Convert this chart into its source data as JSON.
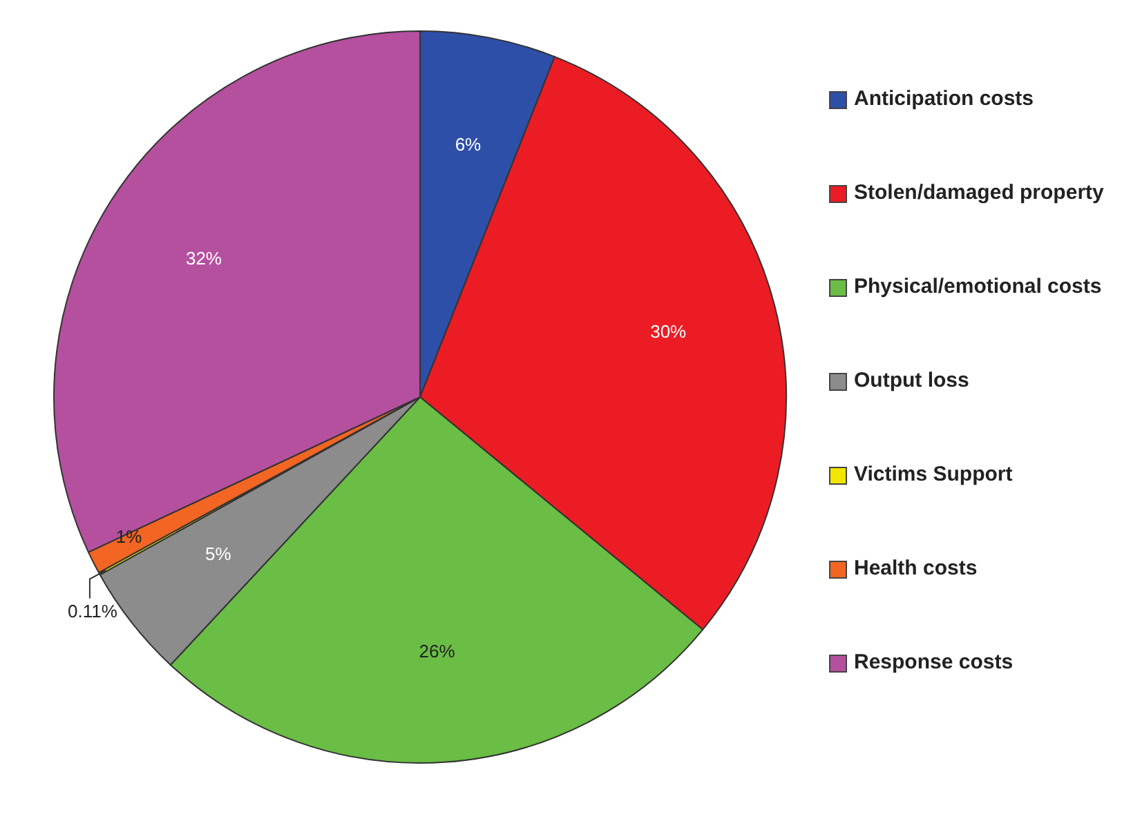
{
  "chart_data": {
    "type": "pie",
    "categories": [
      "Anticipation costs",
      "Stolen/damaged property",
      "Physical/emotional costs",
      "Output loss",
      "Victims Support",
      "Health costs",
      "Response costs"
    ],
    "values": [
      6,
      30,
      26,
      5,
      0.11,
      1,
      32
    ],
    "value_labels": [
      "6%",
      "30%",
      "26%",
      "5%",
      "0.11%",
      "1%",
      "32%"
    ],
    "colors": [
      "#2e4fa8",
      "#ec1c24",
      "#6abd45",
      "#8c8c8c",
      "#f2e600",
      "#f26522",
      "#b5509f"
    ],
    "legend": "right"
  }
}
